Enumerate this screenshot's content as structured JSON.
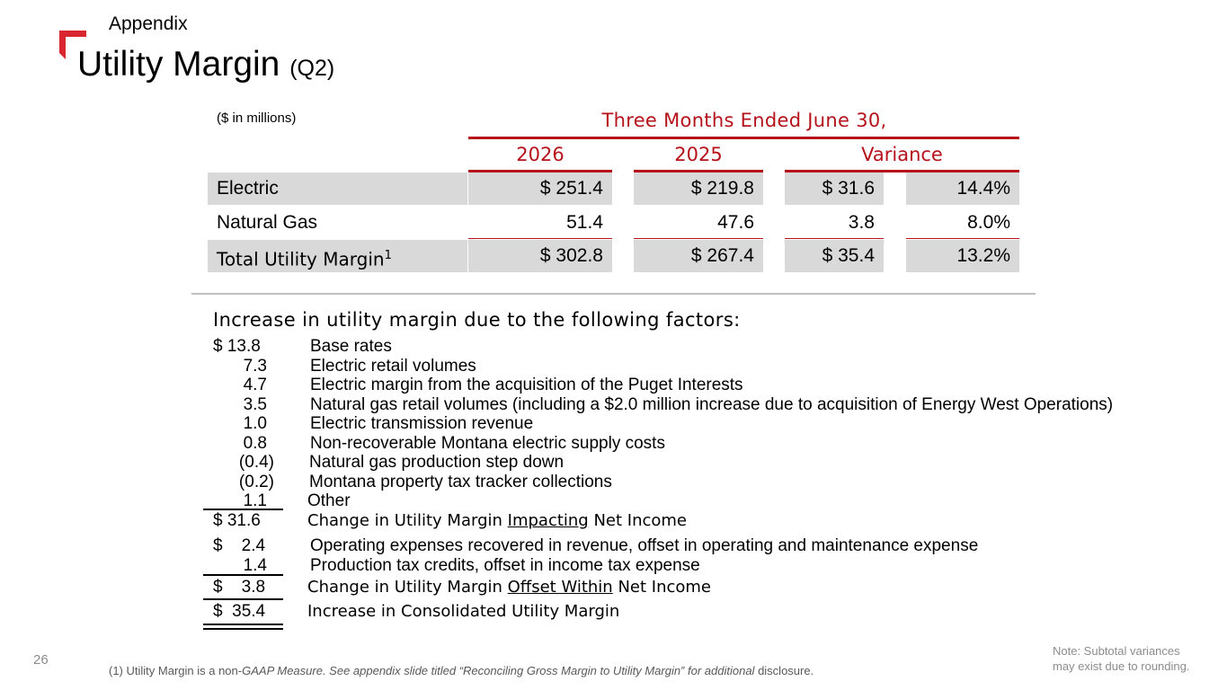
{
  "header": {
    "section": "Appendix",
    "title": "Utility Margin",
    "title_suffix": "(Q2)"
  },
  "table": {
    "units": "($ in millions)",
    "period_header": "Three Months Ended June 30,",
    "columns": [
      "2026",
      "2025",
      "Variance"
    ],
    "rows": [
      {
        "label": "Electric",
        "label_sup": "",
        "c2026": "$ 251.4",
        "c2025": "$ 219.8",
        "var_amt": "$ 31.6",
        "var_pct": "14.4%"
      },
      {
        "label": "Natural Gas",
        "label_sup": "",
        "c2026": "51.4",
        "c2025": "47.6",
        "var_amt": "3.8",
        "var_pct": "8.0%"
      },
      {
        "label": "Total Utility Margin",
        "label_sup": "1",
        "c2026": "$ 302.8",
        "c2025": "$ 267.4",
        "var_amt": "$ 35.4",
        "var_pct": "13.2%"
      }
    ]
  },
  "factors": {
    "title": "Increase in utility margin due to the following factors:",
    "items": [
      {
        "amount": "$  13.8",
        "desc": "Base rates"
      },
      {
        "amount": "7.3",
        "desc": "Electric retail volumes"
      },
      {
        "amount": "4.7",
        "desc": "Electric margin from the acquisition of the Puget Interests"
      },
      {
        "amount": "3.5",
        "desc": "Natural gas retail volumes (including a $2.0 million increase due to acquisition of Energy West Operations)"
      },
      {
        "amount": "1.0",
        "desc": "Electric transmission revenue"
      },
      {
        "amount": "0.8",
        "desc": "Non-recoverable Montana electric supply costs"
      },
      {
        "amount": "(0.4)",
        "desc": "Natural gas production step down"
      },
      {
        "amount": "(0.2)",
        "desc": "Montana property tax tracker collections"
      },
      {
        "amount": "1.1",
        "desc": "Other"
      }
    ],
    "subtotal1": {
      "amount": "$  31.6",
      "desc_pre": "Change in Utility Margin ",
      "desc_u": "Impacting",
      "desc_post": " Net Income"
    },
    "offset_items": [
      {
        "amount": "$    2.4",
        "desc": "Operating expenses recovered in revenue, offset in operating and maintenance expense"
      },
      {
        "amount": "1.4",
        "desc": "Production tax credits, offset in income tax expense"
      }
    ],
    "subtotal2": {
      "amount": "$    3.8",
      "desc_pre": "Change in Utility Margin ",
      "desc_u": "Offset Within",
      "desc_post": " Net Income"
    },
    "total": {
      "amount": "$  35.4",
      "desc": "Increase in Consolidated Utility Margin"
    }
  },
  "footer": {
    "page_number": "26",
    "footnote_pre": "(1) Utility Margin is a non-",
    "footnote_italic": "GAAP Measure. See appendix slide titled “Reconciling Gross Margin to Utility Margin” for additional",
    "footnote_post": " disclosure.",
    "note_line1": "Note: Subtotal variances",
    "note_line2": "may exist due to rounding."
  },
  "colors": {
    "accent": "#b5121b",
    "shade": "#d9d9d9",
    "logo": "#d9262e"
  }
}
